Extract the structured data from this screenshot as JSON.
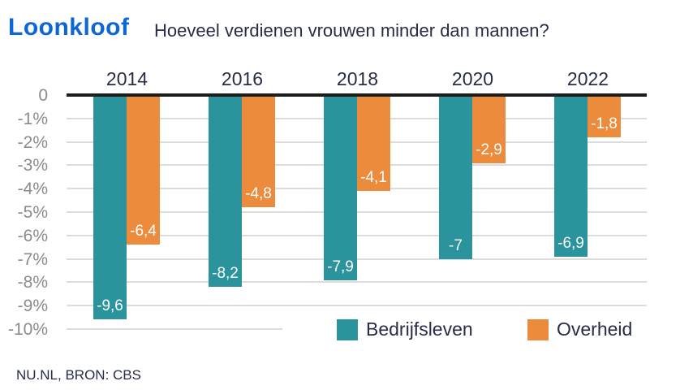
{
  "header": {
    "brand": "Loonkloof",
    "subtitle": "Hoeveel verdienen vrouwen minder dan mannen?"
  },
  "source": "NU.NL, BRON: CBS",
  "colors": {
    "brand_blue": "#0d66d6",
    "teal": "#2a939c",
    "orange": "#ed8b3d",
    "dark_navy": "#272c47",
    "tick_gray": "#8b8b8b",
    "gridline_gray": "#dcdcdc",
    "axis_black": "#1d1d1b",
    "value_white": "#ffffff",
    "background": "#ffffff"
  },
  "chart_data": {
    "type": "bar",
    "categories": [
      "2014",
      "2016",
      "2018",
      "2020",
      "2022"
    ],
    "series": [
      {
        "name": "Bedrijfsleven",
        "color_key": "teal",
        "values": [
          -9.6,
          -8.2,
          -7.9,
          -7,
          -6.9
        ],
        "labels": [
          "-9,6",
          "-8,2",
          "-7,9",
          "-7",
          "-6,9"
        ]
      },
      {
        "name": "Overheid",
        "color_key": "orange",
        "values": [
          -6.4,
          -4.8,
          -4.1,
          -2.9,
          -1.8
        ],
        "labels": [
          "-6,4",
          "-4,8",
          "-4,1",
          "-2,9",
          "-1,8"
        ]
      }
    ],
    "ylim": [
      -10,
      0
    ],
    "yticks": [
      "0",
      "-1%",
      "-2%",
      "-3%",
      "-4%",
      "-5%",
      "-6%",
      "-7%",
      "-8%",
      "-9%",
      "-10%"
    ],
    "grid": true,
    "value_decimal_separator": ",",
    "legend_position": "bottom-right-inside"
  }
}
